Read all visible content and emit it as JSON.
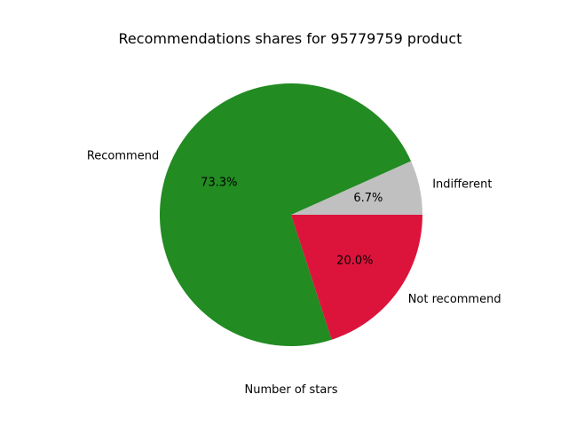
{
  "chart_data": {
    "type": "pie",
    "title": "Recommendations shares for 95779759 product",
    "xlabel": "Number of stars",
    "ylabel": "",
    "start_angle_deg": 0,
    "direction": "counterclockwise",
    "slices": [
      {
        "label": "Indifferent",
        "value": 6.7,
        "percent_label": "6.7%",
        "color": "#c0c0c0"
      },
      {
        "label": "Recommend",
        "value": 73.3,
        "percent_label": "73.3%",
        "color": "#228b22"
      },
      {
        "label": "Not recommend",
        "value": 20.0,
        "percent_label": "20.0%",
        "color": "#dc143c"
      }
    ]
  }
}
